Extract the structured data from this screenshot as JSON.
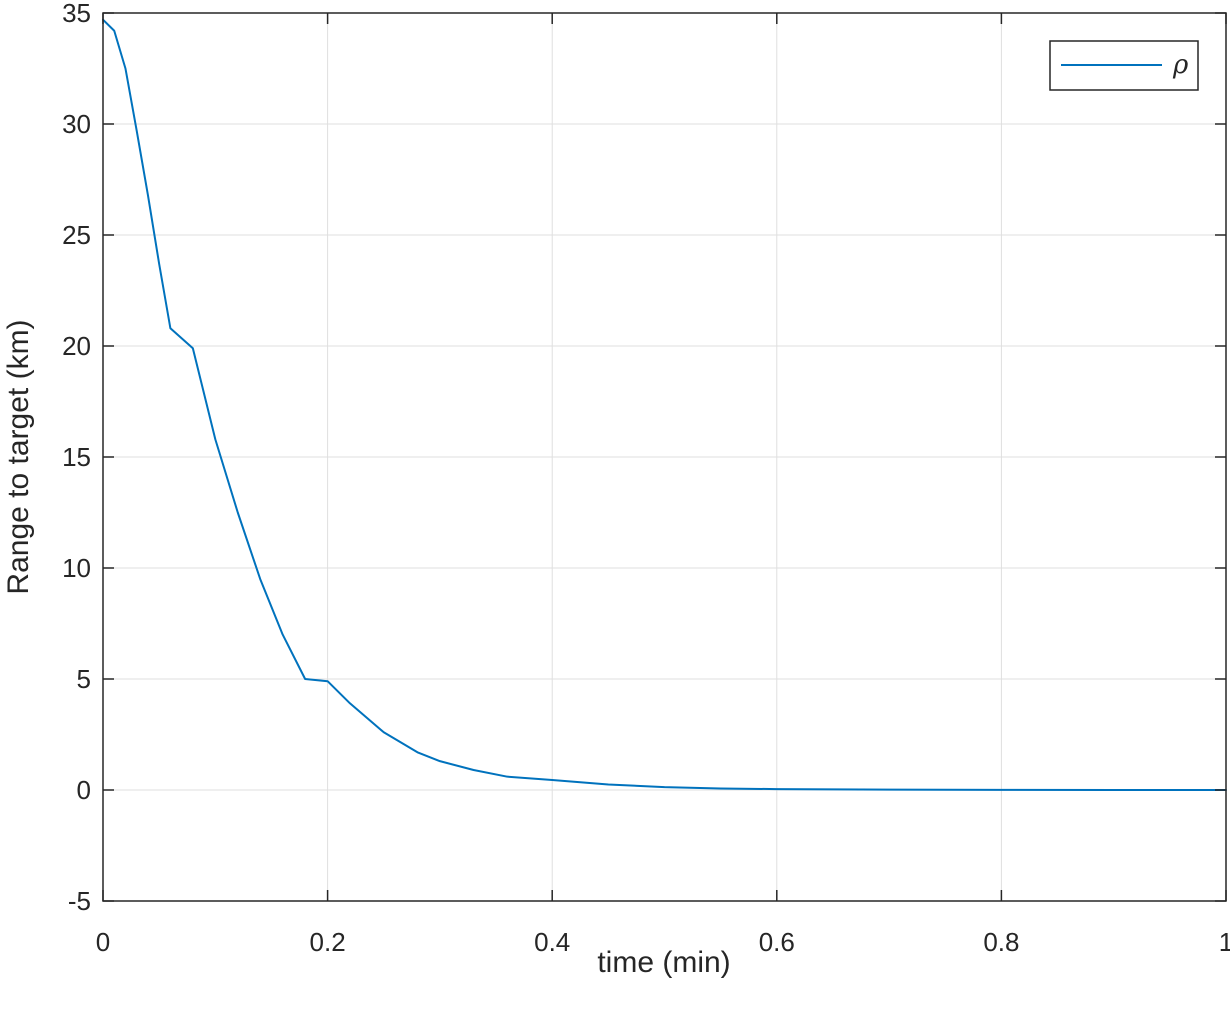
{
  "chart_data": {
    "type": "line",
    "title": "",
    "xlabel": "time (min)",
    "ylabel": "Range to target (km)",
    "xlim": [
      0,
      1
    ],
    "ylim": [
      -5,
      35
    ],
    "grid": true,
    "legend_position": "top-right",
    "x_ticks": [
      "0",
      "0.2",
      "0.4",
      "0.6",
      "0.8",
      "1"
    ],
    "x_tick_values": [
      0,
      0.2,
      0.4,
      0.6,
      0.8,
      1
    ],
    "y_ticks": [
      "-5",
      "0",
      "5",
      "10",
      "15",
      "20",
      "25",
      "30",
      "35"
    ],
    "y_tick_values": [
      -5,
      0,
      5,
      10,
      15,
      20,
      25,
      30,
      35
    ],
    "series": [
      {
        "name": "ρ",
        "color": "#0072BD",
        "x": [
          0,
          0.01,
          0.02,
          0.03,
          0.04,
          0.05,
          0.06,
          0.08,
          0.1,
          0.12,
          0.14,
          0.16,
          0.18,
          0.2,
          0.22,
          0.25,
          0.28,
          0.3,
          0.33,
          0.36,
          0.4,
          0.45,
          0.5,
          0.55,
          0.6,
          0.7,
          0.8,
          0.9,
          1.0
        ],
        "y": [
          34.7,
          34.2,
          32.5,
          29.7,
          26.8,
          23.7,
          20.8,
          19.9,
          15.8,
          12.5,
          9.5,
          7.0,
          5.0,
          4.9,
          3.9,
          2.6,
          1.7,
          1.3,
          0.9,
          0.6,
          0.45,
          0.25,
          0.13,
          0.07,
          0.04,
          0.015,
          0.005,
          0.002,
          0.0
        ]
      }
    ]
  }
}
